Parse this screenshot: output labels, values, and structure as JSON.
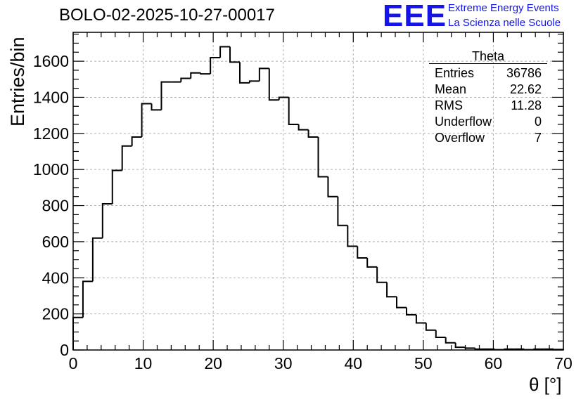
{
  "header": {
    "run_title": "BOLO-02-2025-10-27-00017",
    "logo_text": "EEE",
    "logo_line1": "Extreme Energy Events",
    "logo_line2": "La Scienza nelle Scuole"
  },
  "stats": {
    "title": "Theta",
    "rows": [
      {
        "label": "Entries",
        "value": "36786"
      },
      {
        "label": "Mean",
        "value": "22.62"
      },
      {
        "label": "RMS",
        "value": "11.28"
      },
      {
        "label": "Underflow",
        "value": "0"
      },
      {
        "label": "Overflow",
        "value": "7"
      }
    ]
  },
  "colors": {
    "line": "#000000",
    "grid": "#b0b0b0",
    "brand": "#1414e6"
  },
  "chart_data": {
    "type": "bar",
    "style": "step-histogram",
    "title": "BOLO-02-2025-10-27-00017",
    "xlabel": "θ [°]",
    "ylabel": "Entries/bin",
    "xlim": [
      0,
      70
    ],
    "ylim": [
      0,
      1760
    ],
    "bin_width": 1.4,
    "grid": true,
    "legend": "top-right",
    "x_ticks": [
      0,
      10,
      20,
      30,
      40,
      50,
      60,
      70
    ],
    "y_ticks": [
      0,
      200,
      400,
      600,
      800,
      1000,
      1200,
      1400,
      1600
    ],
    "values": [
      180,
      380,
      620,
      810,
      995,
      1130,
      1180,
      1365,
      1330,
      1485,
      1485,
      1505,
      1535,
      1530,
      1620,
      1680,
      1595,
      1480,
      1490,
      1560,
      1385,
      1400,
      1250,
      1220,
      1180,
      960,
      850,
      690,
      575,
      510,
      460,
      375,
      295,
      235,
      195,
      150,
      110,
      70,
      40,
      15,
      10,
      5,
      5,
      2,
      5,
      5,
      2,
      5,
      5,
      3
    ]
  }
}
